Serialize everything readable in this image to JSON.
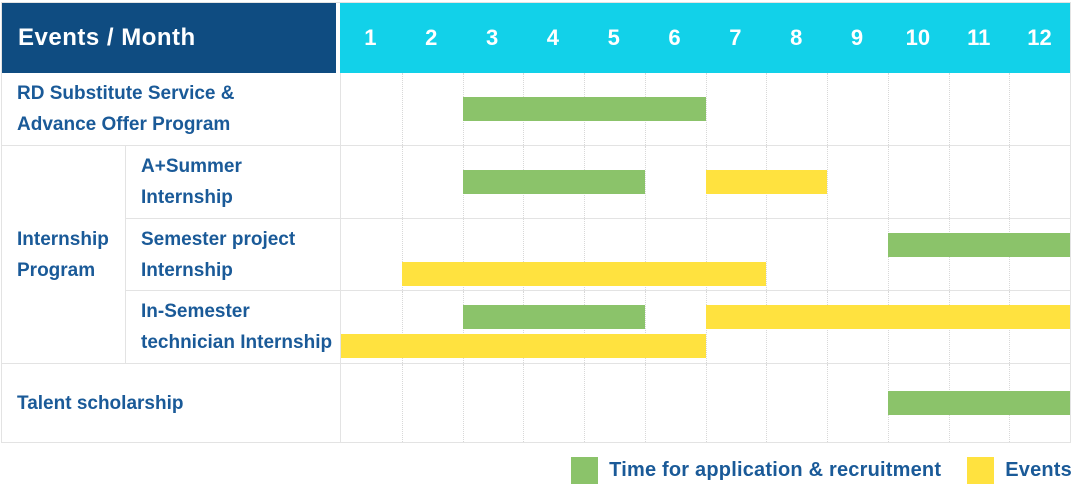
{
  "header": {
    "title": "Events / Month"
  },
  "colors": {
    "header_bg": "#0F4C81",
    "months_bg": "#12D1E9",
    "header_text": "#FFFFFF",
    "label_text": "#1A5A98",
    "green": "#8BC36A",
    "yellow": "#FFE23F",
    "grid_line": "#E3E3E3"
  },
  "chart_data": {
    "type": "bar",
    "variant": "gantt",
    "title": "Events / Month",
    "x_axis": {
      "label": "Month",
      "ticks": [
        "1",
        "2",
        "3",
        "4",
        "5",
        "6",
        "7",
        "8",
        "9",
        "10",
        "11",
        "12"
      ],
      "range": [
        1,
        12
      ],
      "grid": true
    },
    "legend_position": "bottom-right",
    "legend": [
      {
        "name": "Time for application & recruitment",
        "color": "#8BC36A"
      },
      {
        "name": "Events",
        "color": "#FFE23F"
      }
    ],
    "group_label": "Internship\nProgram",
    "rows": [
      {
        "label": "RD Substitute Service &\nAdvance Offer Program",
        "group": "",
        "bars": [
          {
            "series": "Time for application & recruitment",
            "start_month": 3,
            "end_month": 6,
            "lane": "center"
          }
        ]
      },
      {
        "label": "A+Summer\nInternship",
        "group": "Internship Program",
        "bars": [
          {
            "series": "Time for application & recruitment",
            "start_month": 3,
            "end_month": 5,
            "lane": "center"
          },
          {
            "series": "Events",
            "start_month": 7,
            "end_month": 8,
            "lane": "center"
          }
        ]
      },
      {
        "label": "Semester project\nInternship",
        "group": "Internship Program",
        "bars": [
          {
            "series": "Time for application & recruitment",
            "start_month": 10,
            "end_month": 12,
            "lane": "top"
          },
          {
            "series": "Events",
            "start_month": 2,
            "end_month": 7,
            "lane": "bottom"
          }
        ]
      },
      {
        "label": "In-Semester\ntechnician Internship",
        "group": "Internship Program",
        "bars": [
          {
            "series": "Time for application & recruitment",
            "start_month": 3,
            "end_month": 5,
            "lane": "top"
          },
          {
            "series": "Events",
            "start_month": 7,
            "end_month": 12,
            "lane": "top"
          },
          {
            "series": "Events",
            "start_month": 1,
            "end_month": 6,
            "lane": "bottom"
          }
        ]
      },
      {
        "label": "Talent scholarship",
        "group": "",
        "bars": [
          {
            "series": "Time for application & recruitment",
            "start_month": 10,
            "end_month": 12,
            "lane": "center"
          }
        ]
      }
    ]
  }
}
